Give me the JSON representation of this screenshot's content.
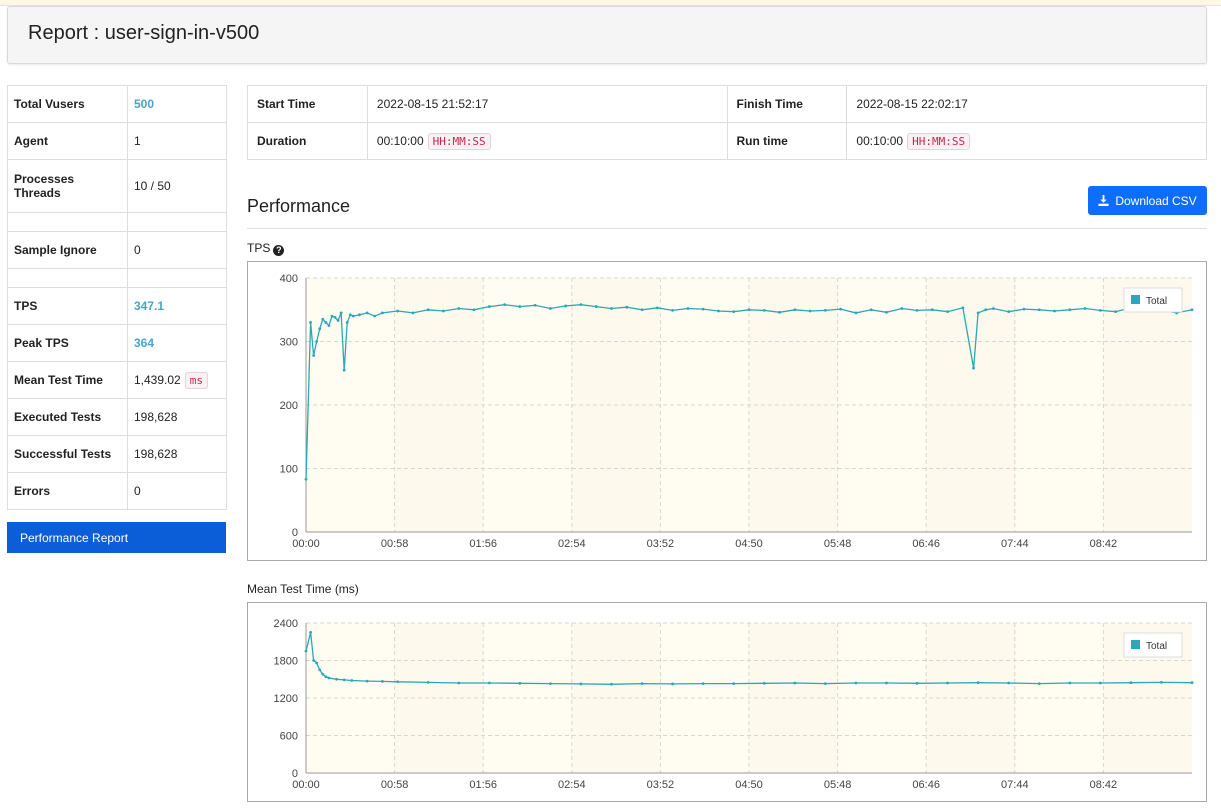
{
  "header": {
    "title": "Report : user-sign-in-v500"
  },
  "summary": {
    "rows": [
      {
        "key": "Total Vusers",
        "value": "500",
        "link": true
      },
      {
        "key": "Agent",
        "value": "1"
      },
      {
        "key": "Processes Threads",
        "value": "10 / 50"
      },
      {
        "key": "Sample Ignore",
        "value": "0"
      },
      {
        "key": "TPS",
        "value": "347.1",
        "link": true
      },
      {
        "key": "Peak TPS",
        "value": "364",
        "link": true
      },
      {
        "key": "Mean Test Time",
        "value": "1,439.02",
        "unit": "ms"
      },
      {
        "key": "Executed Tests",
        "value": "198,628"
      },
      {
        "key": "Successful Tests",
        "value": "198,628"
      },
      {
        "key": "Errors",
        "value": "0"
      }
    ]
  },
  "sidebar": {
    "performance_report_label": "Performance Report"
  },
  "times": {
    "start_label": "Start Time",
    "start_value": "2022-08-15 21:52:17",
    "finish_label": "Finish Time",
    "finish_value": "2022-08-15 22:02:17",
    "duration_label": "Duration",
    "duration_value": "00:10:00",
    "duration_unit": "HH:MM:SS",
    "runtime_label": "Run time",
    "runtime_value": "00:10:00",
    "runtime_unit": "HH:MM:SS"
  },
  "performance": {
    "title": "Performance",
    "download_label": "Download CSV",
    "download_icon": "download-icon"
  },
  "charts": {
    "tps_label": "TPS",
    "tps_help_icon": "question-circle-icon",
    "mtt_label": "Mean Test Time (ms)"
  },
  "chart_data": [
    {
      "type": "line",
      "title": "TPS",
      "x_ticks": [
        "00:00",
        "00:58",
        "01:56",
        "02:54",
        "03:52",
        "04:50",
        "05:48",
        "06:46",
        "07:44",
        "08:42"
      ],
      "y_ticks": [
        0,
        100,
        200,
        300,
        400
      ],
      "ylim": [
        0,
        400
      ],
      "xlim_seconds": [
        0,
        580
      ],
      "legend_position": "top-right",
      "grid": true,
      "series": [
        {
          "name": "Total",
          "color": "#2aa7b8",
          "x": [
            0,
            3,
            5,
            7,
            9,
            11,
            13,
            15,
            17,
            19,
            21,
            23,
            25,
            27,
            29,
            31,
            35,
            40,
            45,
            50,
            60,
            70,
            80,
            90,
            100,
            110,
            120,
            130,
            140,
            150,
            160,
            170,
            180,
            190,
            200,
            210,
            220,
            230,
            240,
            250,
            260,
            270,
            280,
            290,
            300,
            310,
            320,
            330,
            340,
            350,
            360,
            370,
            380,
            390,
            400,
            410,
            420,
            430,
            437,
            440,
            445,
            450,
            460,
            470,
            480,
            490,
            500,
            510,
            520,
            530,
            540,
            550,
            560,
            570,
            580
          ],
          "y": [
            83,
            330,
            278,
            300,
            320,
            335,
            330,
            325,
            340,
            338,
            333,
            345,
            255,
            330,
            342,
            340,
            342,
            345,
            340,
            345,
            348,
            345,
            350,
            348,
            352,
            350,
            355,
            358,
            355,
            357,
            352,
            356,
            358,
            355,
            352,
            354,
            350,
            353,
            349,
            352,
            351,
            348,
            347,
            350,
            349,
            346,
            350,
            348,
            349,
            351,
            345,
            350,
            346,
            352,
            349,
            350,
            347,
            353,
            258,
            345,
            350,
            352,
            347,
            351,
            350,
            348,
            350,
            352,
            349,
            347,
            353,
            350,
            349,
            345,
            350
          ]
        }
      ]
    },
    {
      "type": "line",
      "title": "Mean Test Time (ms)",
      "x_ticks": [
        "00:00",
        "00:58",
        "01:56",
        "02:54",
        "03:52",
        "04:50",
        "05:48",
        "06:46",
        "07:44",
        "08:42"
      ],
      "y_ticks": [
        0,
        600,
        1200,
        1800,
        2400
      ],
      "ylim": [
        0,
        2400
      ],
      "xlim_seconds": [
        0,
        580
      ],
      "legend_position": "top-right",
      "grid": true,
      "series": [
        {
          "name": "Total",
          "color": "#2aa7b8",
          "x": [
            0,
            3,
            5,
            7,
            9,
            11,
            13,
            15,
            20,
            25,
            30,
            40,
            50,
            60,
            80,
            100,
            120,
            140,
            160,
            180,
            200,
            220,
            240,
            260,
            280,
            300,
            320,
            340,
            360,
            380,
            400,
            420,
            440,
            460,
            480,
            500,
            520,
            540,
            560,
            580
          ],
          "y": [
            1950,
            2250,
            1800,
            1760,
            1650,
            1580,
            1540,
            1520,
            1500,
            1490,
            1480,
            1470,
            1465,
            1460,
            1450,
            1440,
            1440,
            1435,
            1430,
            1425,
            1420,
            1430,
            1425,
            1430,
            1430,
            1435,
            1440,
            1430,
            1440,
            1440,
            1435,
            1440,
            1445,
            1440,
            1430,
            1440,
            1440,
            1445,
            1450,
            1445
          ]
        }
      ]
    }
  ]
}
